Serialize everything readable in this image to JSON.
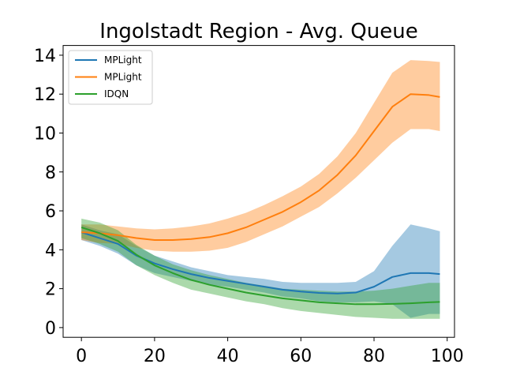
{
  "chart_data": {
    "type": "line",
    "title": "Ingolstadt Region - Avg. Queue",
    "xlabel": "",
    "ylabel": "",
    "xlim": [
      -5,
      102
    ],
    "ylim": [
      -0.5,
      14.5
    ],
    "xticks": [
      0,
      20,
      40,
      60,
      80,
      100
    ],
    "yticks": [
      0,
      2,
      4,
      6,
      8,
      10,
      12,
      14
    ],
    "grid": false,
    "legend_position": "top-left",
    "x": [
      0,
      5,
      10,
      15,
      20,
      25,
      30,
      35,
      40,
      45,
      50,
      55,
      60,
      65,
      70,
      75,
      80,
      85,
      90,
      95,
      98
    ],
    "series": [
      {
        "name": "MPLight",
        "color": "#1f77b4",
        "values": [
          4.9,
          4.6,
          4.3,
          3.7,
          3.3,
          3.0,
          2.75,
          2.55,
          2.4,
          2.25,
          2.1,
          1.95,
          1.85,
          1.78,
          1.75,
          1.8,
          2.1,
          2.6,
          2.8,
          2.8,
          2.75
        ],
        "lower": [
          4.5,
          4.2,
          3.8,
          3.2,
          2.8,
          2.6,
          2.4,
          2.2,
          2.1,
          1.95,
          1.8,
          1.6,
          1.5,
          1.35,
          1.3,
          1.3,
          1.35,
          1.2,
          0.5,
          0.7,
          0.7
        ],
        "upper": [
          5.3,
          5.0,
          4.8,
          4.2,
          3.7,
          3.4,
          3.1,
          2.9,
          2.7,
          2.6,
          2.5,
          2.35,
          2.3,
          2.3,
          2.3,
          2.35,
          2.9,
          4.2,
          5.3,
          5.1,
          4.95
        ]
      },
      {
        "name": "MPLight",
        "color": "#ff7f0e",
        "values": [
          4.9,
          4.85,
          4.75,
          4.6,
          4.5,
          4.5,
          4.55,
          4.65,
          4.85,
          5.15,
          5.55,
          5.95,
          6.45,
          7.05,
          7.85,
          8.85,
          10.1,
          11.35,
          12.0,
          11.95,
          11.85
        ],
        "lower": [
          4.5,
          4.35,
          4.3,
          4.1,
          3.95,
          3.9,
          3.9,
          3.95,
          4.1,
          4.4,
          4.8,
          5.2,
          5.7,
          6.2,
          6.9,
          7.7,
          8.6,
          9.5,
          10.2,
          10.2,
          10.1
        ],
        "upper": [
          5.3,
          5.3,
          5.2,
          5.1,
          5.05,
          5.1,
          5.2,
          5.35,
          5.6,
          5.9,
          6.3,
          6.75,
          7.25,
          7.9,
          8.8,
          10.0,
          11.55,
          13.1,
          13.75,
          13.7,
          13.65
        ]
      },
      {
        "name": "IDQN",
        "color": "#2ca02c",
        "values": [
          5.15,
          4.85,
          4.45,
          3.75,
          3.2,
          2.8,
          2.45,
          2.2,
          2.0,
          1.8,
          1.65,
          1.5,
          1.4,
          1.3,
          1.25,
          1.2,
          1.2,
          1.22,
          1.25,
          1.3,
          1.32
        ],
        "lower": [
          4.6,
          4.3,
          3.9,
          3.2,
          2.7,
          2.3,
          1.95,
          1.75,
          1.55,
          1.35,
          1.2,
          1.0,
          0.85,
          0.75,
          0.65,
          0.55,
          0.5,
          0.45,
          0.45,
          0.45,
          0.45
        ],
        "upper": [
          5.6,
          5.4,
          5.0,
          4.25,
          3.7,
          3.25,
          2.95,
          2.7,
          2.5,
          2.3,
          2.15,
          2.0,
          1.95,
          1.9,
          1.85,
          1.85,
          1.9,
          2.0,
          2.15,
          2.3,
          2.3
        ]
      }
    ]
  }
}
